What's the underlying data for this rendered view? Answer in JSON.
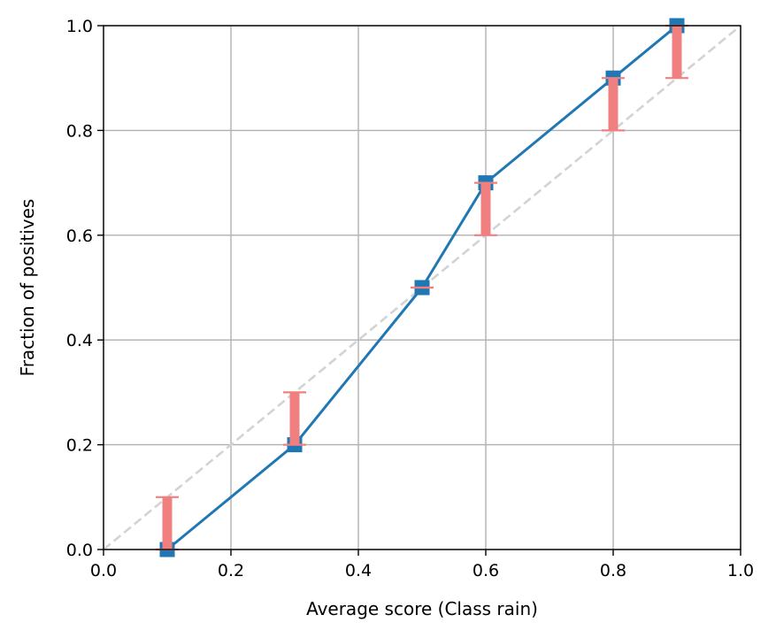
{
  "chart_data": {
    "type": "line",
    "xlabel": "Average score (Class rain)",
    "ylabel": "Fraction of positives",
    "xlim": [
      0.0,
      1.0
    ],
    "ylim": [
      0.0,
      1.0
    ],
    "grid": true,
    "x_ticks": [
      "0.0",
      "0.2",
      "0.4",
      "0.6",
      "0.8",
      "1.0"
    ],
    "y_ticks": [
      "0.0",
      "0.2",
      "0.4",
      "0.6",
      "0.8",
      "1.0"
    ],
    "reference_line": {
      "x": [
        0.0,
        1.0
      ],
      "y": [
        0.0,
        1.0
      ],
      "color": "#d3d3d3",
      "style": "dashed"
    },
    "series": [
      {
        "x": [
          0.1,
          0.3,
          0.5,
          0.6,
          0.8,
          0.9
        ],
        "y": [
          0.0,
          0.2,
          0.5,
          0.7,
          0.9,
          1.0
        ],
        "color": "#1f77b4",
        "marker": "square"
      }
    ],
    "intervals": {
      "color": "#f08080",
      "x": [
        0.1,
        0.3,
        0.5,
        0.6,
        0.8,
        0.9
      ],
      "low": [
        0.0,
        0.2,
        0.5,
        0.6,
        0.8,
        0.9
      ],
      "high": [
        0.1,
        0.3,
        0.5,
        0.7,
        0.9,
        1.0
      ]
    }
  }
}
